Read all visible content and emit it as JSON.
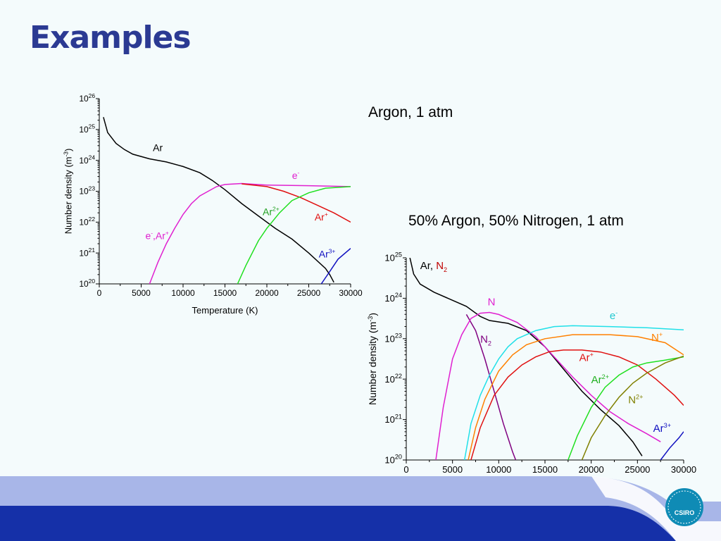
{
  "slide": {
    "title": "Examples"
  },
  "colors": {
    "title": "#2b3a93",
    "footer_dark": "#1530a8",
    "footer_light": "#a8b6e8",
    "logo": "#0f8bb5"
  },
  "logo": {
    "text": "CSIRO"
  },
  "chart_data": [
    {
      "type": "line",
      "caption": "Argon, 1 atm",
      "xlabel": "Temperature (K)",
      "ylabel": "Number density (m^-3)",
      "xlim": [
        0,
        30000
      ],
      "ylim_log10": [
        20,
        26
      ],
      "yscale": "log",
      "grid": false,
      "xticks": [
        "0",
        "5000",
        "10000",
        "15000",
        "20000",
        "25000",
        "30000"
      ],
      "yticks_exp": [
        "20",
        "21",
        "22",
        "23",
        "24",
        "25",
        "26"
      ],
      "series": [
        {
          "label_base": "Ar",
          "label_sup": "",
          "color": "#000000",
          "points": [
            [
              500,
              25.4
            ],
            [
              1000,
              24.9
            ],
            [
              2000,
              24.55
            ],
            [
              3000,
              24.35
            ],
            [
              4000,
              24.2
            ],
            [
              6000,
              24.05
            ],
            [
              8000,
              23.95
            ],
            [
              10000,
              23.8
            ],
            [
              12000,
              23.6
            ],
            [
              13500,
              23.35
            ],
            [
              15000,
              23.05
            ],
            [
              17000,
              22.6
            ],
            [
              19000,
              22.2
            ],
            [
              21000,
              21.8
            ],
            [
              23000,
              21.45
            ],
            [
              25000,
              21.0
            ],
            [
              27000,
              20.5
            ],
            [
              27500,
              20.3
            ],
            [
              28000,
              20.05
            ]
          ]
        },
        {
          "label_base": "e",
          "label_sup": "-",
          "color": "#e020d0",
          "points": [
            [
              6000,
              20.0
            ],
            [
              7000,
              20.7
            ],
            [
              8000,
              21.3
            ],
            [
              9000,
              21.8
            ],
            [
              10000,
              22.25
            ],
            [
              11000,
              22.6
            ],
            [
              12000,
              22.85
            ],
            [
              13000,
              23.0
            ],
            [
              14000,
              23.15
            ],
            [
              15000,
              23.22
            ],
            [
              17000,
              23.25
            ],
            [
              20000,
              23.2
            ],
            [
              25000,
              23.18
            ],
            [
              30000,
              23.15
            ]
          ]
        },
        {
          "label_base": "Ar",
          "label_sup": "+",
          "color": "#e01010",
          "points": [
            [
              17000,
              23.24
            ],
            [
              20000,
              23.15
            ],
            [
              22000,
              23.0
            ],
            [
              24000,
              22.8
            ],
            [
              26000,
              22.55
            ],
            [
              28000,
              22.3
            ],
            [
              30000,
              22.0
            ]
          ]
        },
        {
          "label_base": "Ar",
          "label_sup": "2+",
          "color": "#20e020",
          "points": [
            [
              16500,
              20.0
            ],
            [
              17500,
              20.6
            ],
            [
              19000,
              21.4
            ],
            [
              20000,
              21.8
            ],
            [
              21500,
              22.3
            ],
            [
              23000,
              22.7
            ],
            [
              25000,
              22.95
            ],
            [
              27000,
              23.1
            ],
            [
              30000,
              23.15
            ]
          ]
        },
        {
          "label_base": "Ar",
          "label_sup": "3+",
          "color": "#1010c0",
          "points": [
            [
              26500,
              20.0
            ],
            [
              27500,
              20.4
            ],
            [
              28500,
              20.8
            ],
            [
              30000,
              21.15
            ]
          ]
        }
      ],
      "annotations": [
        {
          "text": "Ar",
          "sup": "",
          "color": "#000000",
          "x": 6400,
          "y": 24.3
        },
        {
          "text": "e",
          "sup": "-",
          "color": "#e020d0",
          "x": 23000,
          "y": 23.4
        },
        {
          "text": "Ar",
          "sup": "2+",
          "color": "#20a020",
          "x": 19500,
          "y": 22.22
        },
        {
          "text": "Ar",
          "sup": "+",
          "color": "#e01010",
          "x": 25700,
          "y": 22.05
        },
        {
          "text": "Ar",
          "sup": "3+",
          "color": "#1010c0",
          "x": 26200,
          "y": 20.85
        },
        {
          "text": "e",
          "sup": "-",
          "color": "#e020d0",
          "x": 5500,
          "y": 21.45,
          "extra": ",Ar",
          "extra_sup": "+"
        }
      ]
    },
    {
      "type": "line",
      "caption": "50% Argon, 50% Nitrogen, 1 atm",
      "xlabel": "Temperature (K)",
      "ylabel": "Number density (m^-3)",
      "xlim": [
        0,
        30000
      ],
      "ylim_log10": [
        20,
        25
      ],
      "yscale": "log",
      "grid": false,
      "xticks": [
        "0",
        "5000",
        "10000",
        "15000",
        "20000",
        "25000",
        "30000"
      ],
      "yticks_exp": [
        "20",
        "21",
        "22",
        "23",
        "24",
        "25"
      ],
      "series": [
        {
          "label_base": "Ar",
          "label_sup": "",
          "color": "#000000",
          "points": [
            [
              300,
              25.1
            ],
            [
              800,
              24.6
            ],
            [
              1500,
              24.35
            ],
            [
              3000,
              24.15
            ],
            [
              5000,
              23.95
            ],
            [
              6500,
              23.8
            ],
            [
              8000,
              23.55
            ],
            [
              9000,
              23.45
            ],
            [
              11000,
              23.38
            ],
            [
              13000,
              23.2
            ],
            [
              15000,
              22.8
            ],
            [
              17000,
              22.25
            ],
            [
              19000,
              21.7
            ],
            [
              21000,
              21.25
            ],
            [
              23000,
              20.85
            ],
            [
              24500,
              20.45
            ],
            [
              25500,
              20.1
            ]
          ]
        },
        {
          "label_base": "N",
          "label_sup": "",
          "color": "#800080",
          "points": [
            [
              6500,
              23.6
            ],
            [
              7500,
              23.2
            ],
            [
              8500,
              22.5
            ],
            [
              9500,
              21.7
            ],
            [
              10500,
              20.9
            ],
            [
              11500,
              20.2
            ],
            [
              12000,
              19.9
            ]
          ]
        },
        {
          "label_base": "N",
          "label_sup": "",
          "color": "#e020d0",
          "points": [
            [
              3200,
              20.0
            ],
            [
              3500,
              20.5
            ],
            [
              4000,
              21.3
            ],
            [
              5000,
              22.5
            ],
            [
              6000,
              23.1
            ],
            [
              7000,
              23.5
            ],
            [
              8000,
              23.63
            ],
            [
              9000,
              23.65
            ],
            [
              10000,
              23.6
            ],
            [
              12000,
              23.4
            ],
            [
              14000,
              23.05
            ],
            [
              16000,
              22.55
            ],
            [
              18000,
              22.05
            ],
            [
              20000,
              21.6
            ],
            [
              22000,
              21.2
            ],
            [
              24000,
              20.9
            ],
            [
              26000,
              20.65
            ],
            [
              27500,
              20.45
            ]
          ]
        },
        {
          "label_base": "e",
          "label_sup": "-",
          "color": "#20e0e8",
          "points": [
            [
              6300,
              20.0
            ],
            [
              7000,
              20.9
            ],
            [
              8000,
              21.6
            ],
            [
              9000,
              22.1
            ],
            [
              10000,
              22.5
            ],
            [
              11000,
              22.8
            ],
            [
              12000,
              23.0
            ],
            [
              13000,
              23.1
            ],
            [
              14000,
              23.2
            ],
            [
              16000,
              23.3
            ],
            [
              18000,
              23.32
            ],
            [
              22000,
              23.3
            ],
            [
              26000,
              23.27
            ],
            [
              30000,
              23.22
            ]
          ]
        },
        {
          "label_base": "N",
          "label_sup": "+",
          "color": "#ff8000",
          "points": [
            [
              6700,
              20.0
            ],
            [
              7500,
              20.8
            ],
            [
              8500,
              21.5
            ],
            [
              10000,
              22.2
            ],
            [
              11500,
              22.6
            ],
            [
              13000,
              22.85
            ],
            [
              15000,
              23.0
            ],
            [
              18000,
              23.1
            ],
            [
              22000,
              23.1
            ],
            [
              25000,
              23.05
            ],
            [
              28000,
              22.9
            ],
            [
              30000,
              22.6
            ]
          ]
        },
        {
          "label_base": "Ar",
          "label_sup": "+",
          "color": "#e01010",
          "points": [
            [
              7000,
              20.0
            ],
            [
              8000,
              20.8
            ],
            [
              9500,
              21.6
            ],
            [
              11000,
              22.05
            ],
            [
              12500,
              22.35
            ],
            [
              14000,
              22.55
            ],
            [
              15500,
              22.68
            ],
            [
              17000,
              22.72
            ],
            [
              19000,
              22.72
            ],
            [
              21000,
              22.67
            ],
            [
              23000,
              22.55
            ],
            [
              25000,
              22.35
            ],
            [
              27000,
              22.0
            ],
            [
              29000,
              21.6
            ],
            [
              30000,
              21.35
            ]
          ]
        },
        {
          "label_base": "Ar",
          "label_sup": "2+",
          "color": "#20e020",
          "points": [
            [
              17500,
              20.0
            ],
            [
              18500,
              20.6
            ],
            [
              20000,
              21.3
            ],
            [
              21500,
              21.8
            ],
            [
              23000,
              22.1
            ],
            [
              24500,
              22.3
            ],
            [
              26000,
              22.4
            ],
            [
              28000,
              22.47
            ],
            [
              30000,
              22.55
            ]
          ]
        },
        {
          "label_base": "N",
          "label_sup": "2+",
          "color": "#808000",
          "points": [
            [
              19000,
              20.0
            ],
            [
              20000,
              20.55
            ],
            [
              21500,
              21.1
            ],
            [
              23000,
              21.55
            ],
            [
              24500,
              21.9
            ],
            [
              26000,
              22.15
            ],
            [
              28000,
              22.4
            ],
            [
              30000,
              22.57
            ]
          ]
        },
        {
          "label_base": "Ar",
          "label_sup": "3+",
          "color": "#1010c0",
          "points": [
            [
              27500,
              20.0
            ],
            [
              28500,
              20.3
            ],
            [
              29500,
              20.55
            ],
            [
              30000,
              20.7
            ]
          ]
        }
      ],
      "annotations": [
        {
          "text": "Ar, ",
          "sup": "",
          "color": "#000000",
          "x": 1500,
          "y": 24.72,
          "extra": "N",
          "extra_sub": "2",
          "extra_color": "#c00000"
        },
        {
          "text": "N",
          "sup": "",
          "color": "#e020d0",
          "x": 8800,
          "y": 23.82
        },
        {
          "text": "e",
          "sup": "-",
          "color": "#20c8d0",
          "x": 22000,
          "y": 23.48
        },
        {
          "text": "N",
          "sub": "2",
          "color": "#800080",
          "x": 8000,
          "y": 22.9
        },
        {
          "text": "N",
          "sup": "+",
          "color": "#ff8000",
          "x": 26500,
          "y": 22.94
        },
        {
          "text": "Ar",
          "sup": "+",
          "color": "#e01010",
          "x": 18700,
          "y": 22.45
        },
        {
          "text": "Ar",
          "sup": "2+",
          "color": "#20b020",
          "x": 20000,
          "y": 21.9
        },
        {
          "text": "N",
          "sup": "2+",
          "color": "#808000",
          "x": 24000,
          "y": 21.4
        },
        {
          "text": "Ar",
          "sup": "3+",
          "color": "#1010c0",
          "x": 26700,
          "y": 20.7
        }
      ]
    }
  ]
}
